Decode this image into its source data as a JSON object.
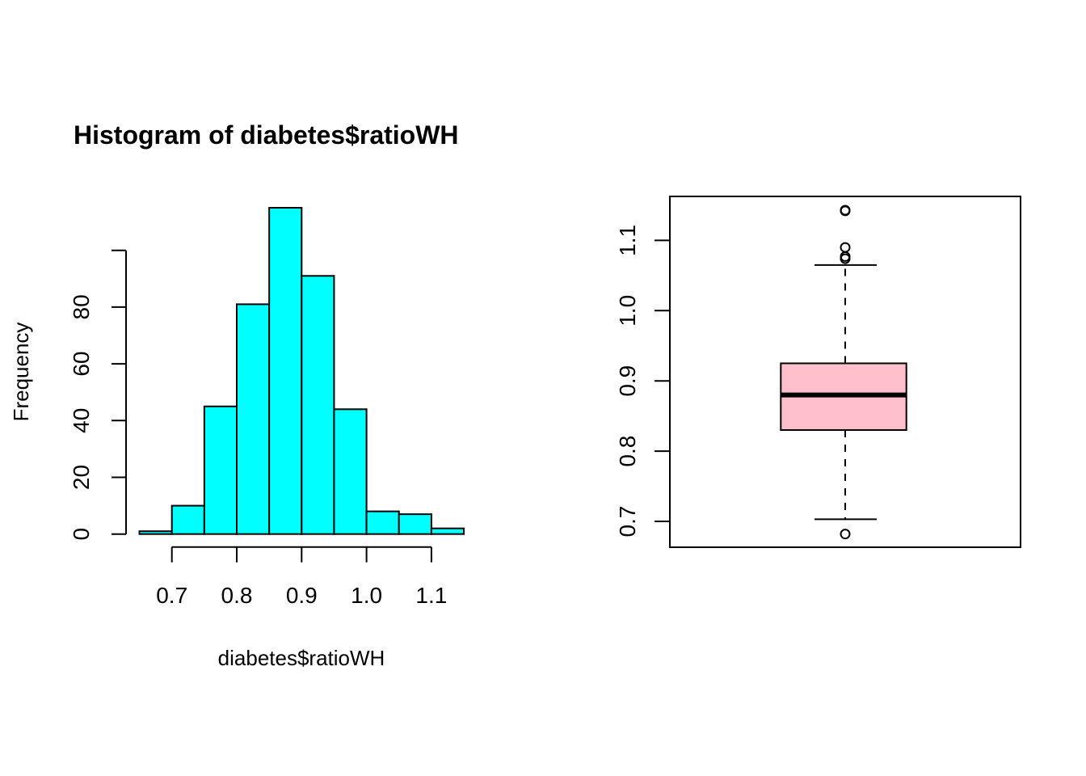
{
  "chart_data": [
    {
      "type": "histogram",
      "title": "Histogram of diabetes$ratioWH",
      "xlabel": "diabetes$ratioWH",
      "ylabel": "Frequency",
      "bin_edges": [
        0.65,
        0.7,
        0.75,
        0.8,
        0.85,
        0.9,
        0.95,
        1.0,
        1.05,
        1.1,
        1.15
      ],
      "values": [
        1,
        10,
        45,
        81,
        115,
        91,
        44,
        8,
        7,
        2
      ],
      "x_ticks": [
        0.7,
        0.8,
        0.9,
        1.0,
        1.1
      ],
      "x_tick_labels": [
        "0.7",
        "0.8",
        "0.9",
        "1.0",
        "1.1"
      ],
      "y_ticks": [
        0,
        20,
        40,
        60,
        80,
        100
      ],
      "y_tick_labels": [
        "0",
        "20",
        "40",
        "60",
        "80",
        ""
      ],
      "xlim": [
        0.65,
        1.15
      ],
      "ylim": [
        0,
        115
      ],
      "fill_color": "#00ffff",
      "border_color": "#000000",
      "grid": false
    },
    {
      "type": "boxplot",
      "title": "",
      "xlabel": "",
      "ylabel": "",
      "stats": {
        "lower_whisker": 0.703,
        "q1": 0.83,
        "median": 0.88,
        "q3": 0.925,
        "upper_whisker": 1.065
      },
      "outliers": [
        1.142,
        1.143,
        1.09,
        1.077,
        1.074,
        0.682
      ],
      "y_ticks": [
        0.7,
        0.8,
        0.9,
        1.0,
        1.1
      ],
      "y_tick_labels": [
        "0.7",
        "0.8",
        "0.9",
        "1.0",
        "1.1"
      ],
      "ylim": [
        0.666,
        1.162
      ],
      "fill_color": "#ffc0cb",
      "border_color": "#000000",
      "grid": false
    }
  ]
}
